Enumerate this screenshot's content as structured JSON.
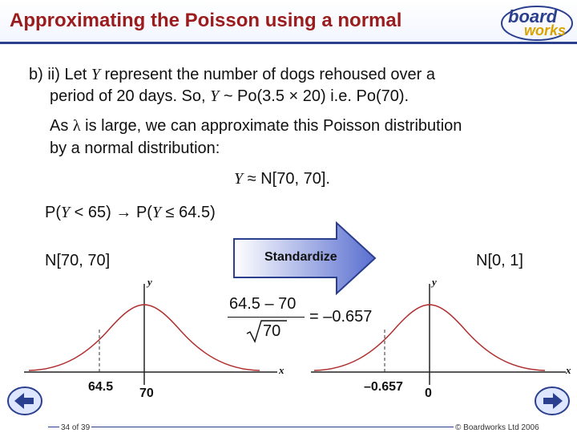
{
  "title": "Approximating the Poisson using a normal",
  "logo": {
    "line1": "board",
    "line2": "works"
  },
  "content": {
    "p1_a": "b) ii) Let ",
    "p1_var": "Y",
    "p1_b": " represent the number of dogs rehoused over a",
    "p1_line2_a": "period of 20 days. So, ",
    "p1_line2_var": "Y",
    "p1_line2_b": " ~ Po(3.5 × 20) i.e. Po(70).",
    "p2_a": "As ",
    "p2_lambda": "λ",
    "p2_b": " is large, we can approximate this Poisson distribution",
    "p2_line2": "by a normal distribution:",
    "approx_var": "Y",
    "approx_b": " ≈ N[70, 70].",
    "prob_a": "P(",
    "prob_var1": "Y",
    "prob_b": " < 65) → P(",
    "prob_var2": "Y",
    "prob_c": " ≤ 64.5)",
    "left_dist": "N[70, 70]",
    "right_dist": "N[0, 1]",
    "standardize": "Standardize",
    "formula_num": "64.5 – 70",
    "formula_den": "70",
    "formula_result": "= –0.657"
  },
  "graphs": {
    "left": {
      "y_axis": "y",
      "x_axis": "x",
      "mark_label": "64.5",
      "center_label": "70"
    },
    "right": {
      "y_axis": "y",
      "x_axis": "x",
      "mark_label": "–0.657",
      "center_label": "0"
    }
  },
  "footer": {
    "page": "34 of 39",
    "copyright": "© Boardworks Ltd 2006"
  },
  "colors": {
    "title": "#9b1c1c",
    "curve": "#b03030",
    "arrow": "#5a6fd0"
  }
}
